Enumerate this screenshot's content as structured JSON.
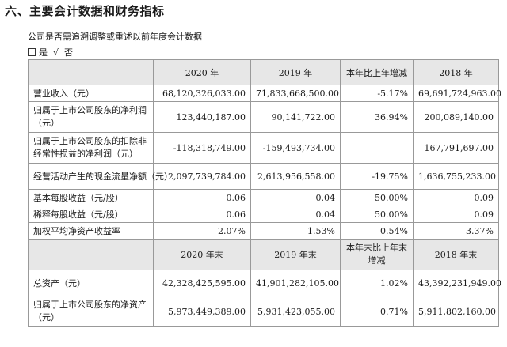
{
  "heading": "六、主要会计数据和财务指标",
  "question": "公司是否需追溯调整或重述以前年度会计数据",
  "answer": {
    "yes": "是",
    "no_mark": "√",
    "no": "否"
  },
  "header1": [
    "",
    "2020 年",
    "2019 年",
    "本年比上年增减",
    "2018 年"
  ],
  "rows1": [
    {
      "label": "营业收入（元）",
      "v2020": "68,120,326,033.00",
      "v2019": "71,833,668,500.00",
      "chg": "-5.17%",
      "v2018": "69,691,724,963.00"
    },
    {
      "label": "归属于上市公司股东的净利润（元）",
      "v2020": "123,440,187.00",
      "v2019": "90,141,722.00",
      "chg": "36.94%",
      "v2018": "200,089,140.00"
    },
    {
      "label": "归属于上市公司股东的扣除非经常性损益的净利润（元）",
      "v2020": "-118,318,749.00",
      "v2019": "-159,493,734.00",
      "chg": "",
      "v2018": "167,791,697.00"
    },
    {
      "label": "经营活动产生的现金流量净额（元）",
      "v2020": "2,097,739,784.00",
      "v2019": "2,613,956,558.00",
      "chg": "-19.75%",
      "v2018": "1,636,755,233.00"
    },
    {
      "label": "基本每股收益（元/股）",
      "v2020": "0.06",
      "v2019": "0.04",
      "chg": "50.00%",
      "v2018": "0.09"
    },
    {
      "label": "稀释每股收益（元/股）",
      "v2020": "0.06",
      "v2019": "0.04",
      "chg": "50.00%",
      "v2018": "0.09"
    },
    {
      "label": "加权平均净资产收益率",
      "v2020": "2.07%",
      "v2019": "1.53%",
      "chg": "0.54%",
      "v2018": "3.37%"
    }
  ],
  "header2": [
    "",
    "2020 年末",
    "2019 年末",
    "本年末比上年末增减",
    "2018 年末"
  ],
  "rows2": [
    {
      "label": "总资产（元）",
      "v2020": "42,328,425,595.00",
      "v2019": "41,901,282,105.00",
      "chg": "1.02%",
      "v2018": "43,392,231,949.00"
    },
    {
      "label": "归属于上市公司股东的净资产（元）",
      "v2020": "5,973,449,389.00",
      "v2019": "5,931,423,055.00",
      "chg": "0.71%",
      "v2018": "5,911,802,160.00"
    }
  ]
}
